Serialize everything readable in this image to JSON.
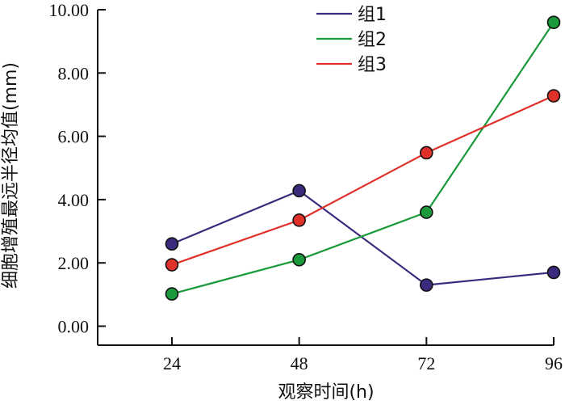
{
  "chart_data": {
    "type": "line",
    "title": "",
    "xlabel": "观察时间(h)",
    "ylabel": "细胞增殖最远半径均值(mm)",
    "x": [
      24,
      48,
      72,
      96
    ],
    "x_tick_labels": [
      "24",
      "48",
      "72",
      "96"
    ],
    "y_tick_labels": [
      "0.00",
      "2.00",
      "4.00",
      "6.00",
      "8.00",
      "10.00"
    ],
    "y_ticks": [
      0,
      2,
      4,
      6,
      8,
      10
    ],
    "xlim": [
      10,
      96
    ],
    "ylim": [
      -0.6,
      10
    ],
    "grid": false,
    "legend_position": "top-center",
    "series": [
      {
        "name": "组1",
        "color": "#3b2a7e",
        "values": [
          2.6,
          4.28,
          1.3,
          1.7
        ]
      },
      {
        "name": "组2",
        "color": "#1a9a3a",
        "values": [
          1.02,
          2.1,
          3.6,
          9.6
        ]
      },
      {
        "name": "组3",
        "color": "#e0302a",
        "values": [
          1.94,
          3.35,
          5.48,
          7.28
        ]
      }
    ]
  }
}
